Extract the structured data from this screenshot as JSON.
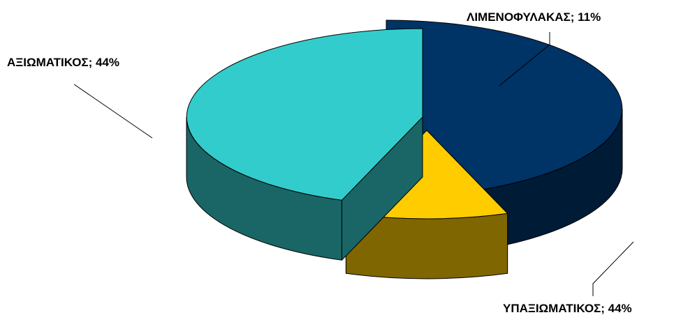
{
  "chart_data": {
    "type": "pie",
    "title": "",
    "three_d": true,
    "exploded": true,
    "legend": "none",
    "slices": [
      {
        "label": "ΑΞΙΩΜΑΤΙΚΟΣ",
        "value": 44,
        "display": "ΑΞΙΩΜΑΤΙΚΟΣ; 44%",
        "top_color": "#003366",
        "side_color": "#001B36"
      },
      {
        "label": "ΛΙΜΕΝΟΦΥΛΑΚΑΣ",
        "value": 11,
        "display": "ΛΙΜΕΝΟΦΥΛΑΚΑΣ; 11%",
        "top_color": "#FFCC00",
        "side_color": "#806600"
      },
      {
        "label": "ΥΠΑΞΙΩΜΑΤΙΚΟΣ",
        "value": 44,
        "display": "ΥΠΑΞΙΩΜΑΤΙΚΟΣ; 44%",
        "top_color": "#33CCCC",
        "side_color": "#1A6666"
      }
    ]
  }
}
